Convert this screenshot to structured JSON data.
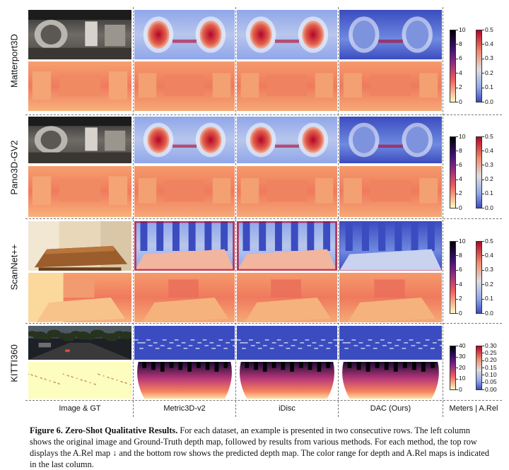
{
  "rows": [
    {
      "id": "matterport",
      "label": "Matterport3D",
      "scene": "indoor"
    },
    {
      "id": "pano3d",
      "label": "Pano3D-GV2",
      "scene": "indoor"
    },
    {
      "id": "scannet",
      "label": "ScanNet++",
      "scene": "fisheye"
    },
    {
      "id": "kitti",
      "label": "KITTI360",
      "scene": "outdoor"
    }
  ],
  "columns": [
    "Image & GT",
    "Metric3D-v2",
    "iDisc",
    "DAC (Ours)",
    "Meters | A.Rel"
  ],
  "colorbars": [
    {
      "depth_ticks": [
        "10",
        "8",
        "6",
        "4",
        "2",
        "0"
      ],
      "arel_ticks": [
        "0.5",
        "0.4",
        "0.3",
        "0.2",
        "0.1",
        "0.0"
      ]
    },
    {
      "depth_ticks": [
        "10",
        "8",
        "6",
        "4",
        "2",
        "0"
      ],
      "arel_ticks": [
        "0.5",
        "0.4",
        "0.3",
        "0.2",
        "0.1",
        "0.0"
      ]
    },
    {
      "depth_ticks": [
        "10",
        "8",
        "6",
        "4",
        "2",
        "0"
      ],
      "arel_ticks": [
        "0.5",
        "0.4",
        "0.3",
        "0.2",
        "0.1",
        "0.0"
      ]
    },
    {
      "depth_ticks": [
        "40",
        "30",
        "20",
        "10",
        "0"
      ],
      "arel_ticks": [
        "0.30",
        "0.25",
        "0.20",
        "0.15",
        "0.10",
        "0.05",
        "0.00"
      ]
    }
  ],
  "colors": {
    "arel_low": "#3b4cc0",
    "arel_mid": "#dddcdc",
    "arel_high": "#b40426",
    "depth_near": "#fcfdbf",
    "depth_mid": "#f0605d",
    "depth_far": "#000004"
  },
  "caption": {
    "figure_num": "Figure 6.",
    "title": "Zero-Shot Qualitative Results.",
    "body": "For each dataset, an example is presented in two consecutive rows. The left column shows the original image and Ground-Truth depth map, followed by results from various methods. For each method, the top row displays the A.Rel map ↓ and the bottom row shows the predicted depth map. The color range for depth and A.Rel maps is indicated in the last column."
  }
}
